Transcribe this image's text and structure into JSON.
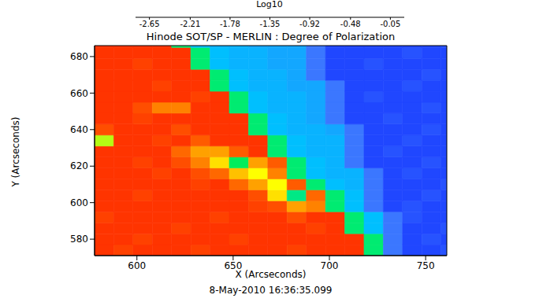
{
  "chart_data": {
    "type": "heatmap",
    "title": "Hinode SOT/SP - MERLIN : Degree of Polarization",
    "x_label": "X (Arcseconds)",
    "y_label": "Y (Arcseconds)",
    "annotations": [
      "8-May-2010 16:36:35.099"
    ],
    "xlim": [
      578,
      761
    ],
    "xticks": [
      600,
      650,
      700,
      750
    ],
    "ylim": [
      571,
      686
    ],
    "yticks": [
      580,
      600,
      620,
      640,
      660,
      680
    ],
    "colorbar": {
      "label": "Log10",
      "range": [
        -2.8,
        0.1
      ],
      "ticks": [
        -2.65,
        -2.21,
        -1.78,
        -1.35,
        -0.92,
        -0.48,
        -0.05
      ]
    },
    "heatmap": {
      "x_edges": [
        578,
        588,
        598,
        608,
        618,
        628,
        638,
        648,
        658,
        668,
        678,
        688,
        698,
        708,
        718,
        728,
        738,
        748,
        758,
        761
      ],
      "y_edges": [
        571,
        577,
        583,
        589,
        595,
        601,
        607,
        613,
        619,
        625,
        631,
        637,
        643,
        649,
        655,
        661,
        667,
        673,
        679,
        685,
        686
      ],
      "values": [
        [
          -2.6,
          -2.55,
          -2.6,
          -2.6,
          -2.6,
          -2.55,
          -2.6,
          -2.6,
          -2.6,
          -2.6,
          -2.55,
          -2.6,
          -2.6,
          -2.6,
          -1.45,
          -0.65,
          -0.45,
          -0.45,
          -0.5
        ],
        [
          -2.6,
          -2.6,
          -2.55,
          -2.6,
          -2.6,
          -2.6,
          -2.6,
          -2.55,
          -2.6,
          -2.6,
          -2.6,
          -2.6,
          -2.6,
          -2.6,
          -1.45,
          -0.65,
          -0.45,
          -0.5,
          -0.45
        ],
        [
          -2.6,
          -2.6,
          -2.6,
          -2.6,
          -2.55,
          -2.6,
          -2.6,
          -2.6,
          -2.6,
          -2.6,
          -2.6,
          -2.55,
          -2.6,
          -1.45,
          -0.95,
          -0.65,
          -0.45,
          -0.45,
          -0.5
        ],
        [
          -2.55,
          -2.6,
          -2.6,
          -2.6,
          -2.6,
          -2.6,
          -2.55,
          -2.6,
          -2.6,
          -2.6,
          -2.5,
          -2.6,
          -2.6,
          -1.45,
          -0.95,
          -0.65,
          -0.5,
          -0.45,
          -0.45
        ],
        [
          -2.6,
          -2.6,
          -2.6,
          -2.6,
          -2.6,
          -2.6,
          -2.6,
          -2.6,
          -2.55,
          -2.5,
          -2.2,
          -2.3,
          -1.45,
          -0.95,
          -0.65,
          -0.45,
          -0.5,
          -0.45,
          -0.45
        ],
        [
          -2.6,
          -2.6,
          -2.55,
          -2.6,
          -2.6,
          -2.6,
          -2.6,
          -2.6,
          -2.5,
          -2.0,
          -1.4,
          -2.4,
          -1.45,
          -0.95,
          -0.65,
          -0.45,
          -0.45,
          -0.5,
          -0.45
        ],
        [
          -2.6,
          -2.6,
          -2.6,
          -2.6,
          -2.6,
          -2.55,
          -2.6,
          -2.4,
          -2.2,
          -1.9,
          -2.45,
          -1.45,
          -0.95,
          -0.9,
          -0.65,
          -0.45,
          -0.45,
          -0.45,
          -0.5
        ],
        [
          -2.6,
          -2.6,
          -2.6,
          -2.55,
          -2.6,
          -2.5,
          -2.4,
          -2.1,
          -1.9,
          -2.3,
          -1.45,
          -0.95,
          -0.9,
          -0.9,
          -0.65,
          -0.45,
          -0.5,
          -0.45,
          -0.45
        ],
        [
          -2.6,
          -2.6,
          -2.55,
          -2.6,
          -2.5,
          -2.3,
          -2.0,
          -1.5,
          -2.2,
          -2.45,
          -1.45,
          -0.95,
          -0.9,
          -0.65,
          -0.45,
          -0.45,
          -0.45,
          -0.5,
          -0.45
        ],
        [
          -2.6,
          -2.6,
          -2.6,
          -2.6,
          -2.4,
          -2.2,
          -2.2,
          -2.45,
          -2.6,
          -1.45,
          -0.95,
          -0.9,
          -0.9,
          -0.65,
          -0.45,
          -0.5,
          -0.45,
          -0.45,
          -0.45
        ],
        [
          -1.8,
          -2.6,
          -2.6,
          -2.55,
          -2.6,
          -2.45,
          -2.6,
          -2.6,
          -2.6,
          -1.45,
          -0.95,
          -0.9,
          -0.9,
          -0.65,
          -0.45,
          -0.45,
          -0.5,
          -0.45,
          -0.45
        ],
        [
          -2.5,
          -2.6,
          -2.6,
          -2.6,
          -2.5,
          -2.6,
          -2.6,
          -2.6,
          -1.45,
          -0.95,
          -0.9,
          -0.9,
          -0.85,
          -0.65,
          -0.45,
          -0.45,
          -0.45,
          -0.5,
          -0.45
        ],
        [
          -2.6,
          -2.6,
          -2.55,
          -2.6,
          -2.6,
          -2.6,
          -2.6,
          -2.6,
          -1.45,
          -0.95,
          -0.9,
          -0.85,
          -0.65,
          -0.45,
          -0.45,
          -0.5,
          -0.45,
          -0.45,
          -0.45
        ],
        [
          -2.6,
          -2.6,
          -2.5,
          -2.3,
          -2.3,
          -2.6,
          -2.6,
          -1.45,
          -0.95,
          -0.9,
          -0.9,
          -0.85,
          -0.65,
          -0.45,
          -0.45,
          -0.45,
          -0.45,
          -0.5,
          -0.45
        ],
        [
          -2.6,
          -2.6,
          -2.6,
          -2.6,
          -2.6,
          -2.55,
          -2.6,
          -1.45,
          -0.95,
          -0.9,
          -0.9,
          -0.85,
          -0.65,
          -0.45,
          -0.5,
          -0.45,
          -0.45,
          -0.45,
          -0.45
        ],
        [
          -2.6,
          -2.6,
          -2.6,
          -2.55,
          -2.6,
          -2.6,
          -1.45,
          -0.95,
          -0.9,
          -0.9,
          -0.85,
          -0.85,
          -0.65,
          -0.45,
          -0.45,
          -0.45,
          -0.5,
          -0.45,
          -0.45
        ],
        [
          -2.6,
          -2.6,
          -2.6,
          -2.6,
          -2.6,
          -2.6,
          -1.45,
          -0.95,
          -0.9,
          -0.9,
          -0.85,
          -0.65,
          -0.45,
          -0.45,
          -0.45,
          -0.45,
          -0.45,
          -0.5,
          -0.45
        ],
        [
          -2.6,
          -2.6,
          -2.55,
          -2.6,
          -2.6,
          -1.45,
          -0.95,
          -0.9,
          -0.9,
          -0.85,
          -0.85,
          -0.65,
          -0.45,
          -0.45,
          -0.5,
          -0.45,
          -0.45,
          -0.45,
          -0.45
        ],
        [
          -2.6,
          -2.6,
          -2.6,
          -2.6,
          -2.6,
          -1.45,
          -0.95,
          -0.9,
          -0.9,
          -0.85,
          -0.85,
          -0.65,
          -0.45,
          -0.45,
          -0.45,
          -0.45,
          -0.5,
          -0.45,
          -0.45
        ],
        [
          -2.6,
          -2.6,
          -2.6,
          -2.6,
          -1.45,
          -0.95,
          -0.9,
          -0.9,
          -0.85,
          -0.85,
          -0.85,
          -0.65,
          -0.45,
          -0.45,
          -0.45,
          -0.45,
          -0.45,
          -0.45,
          -0.5
        ]
      ]
    }
  }
}
